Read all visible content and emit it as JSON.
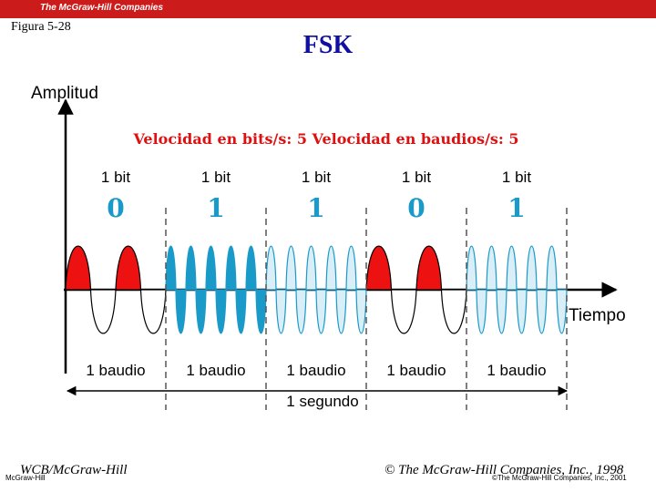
{
  "header": {
    "logo_text": "The McGraw-Hill Companies",
    "figure_label": "Figura 5-28",
    "title": "FSK"
  },
  "diagram": {
    "amplitude_label": "Amplitud",
    "time_label": "Tiempo",
    "rate_label": "Velocidad en bits/s: 5 Velocidad en baudios/s: 5",
    "total_label": "1 segundo",
    "bits": [
      {
        "bit_label": "1 bit",
        "value": "0",
        "baud_label": "1 baudio"
      },
      {
        "bit_label": "1 bit",
        "value": "1",
        "baud_label": "1 baudio"
      },
      {
        "bit_label": "1 bit",
        "value": "1",
        "baud_label": "1 baudio"
      },
      {
        "bit_label": "1 bit",
        "value": "0",
        "baud_label": "1 baudio"
      },
      {
        "bit_label": "1 bit",
        "value": "1",
        "baud_label": "1 baudio"
      }
    ],
    "colors": {
      "zero_fill": "#ee1111",
      "one_fill_solid": "#1a9ac9",
      "one_fill_light": "#d9eef7",
      "one_stroke": "#1a9ac9",
      "rate_text": "#dd1111",
      "value_text": "#1a9ac9"
    }
  },
  "footer": {
    "left": "WCB/McGraw-Hill",
    "left_small": "McGraw-Hill",
    "right": "© The McGraw-Hill Companies, Inc., 1998",
    "right_small": "©The McGraw-Hill Companies, Inc., 2001"
  }
}
